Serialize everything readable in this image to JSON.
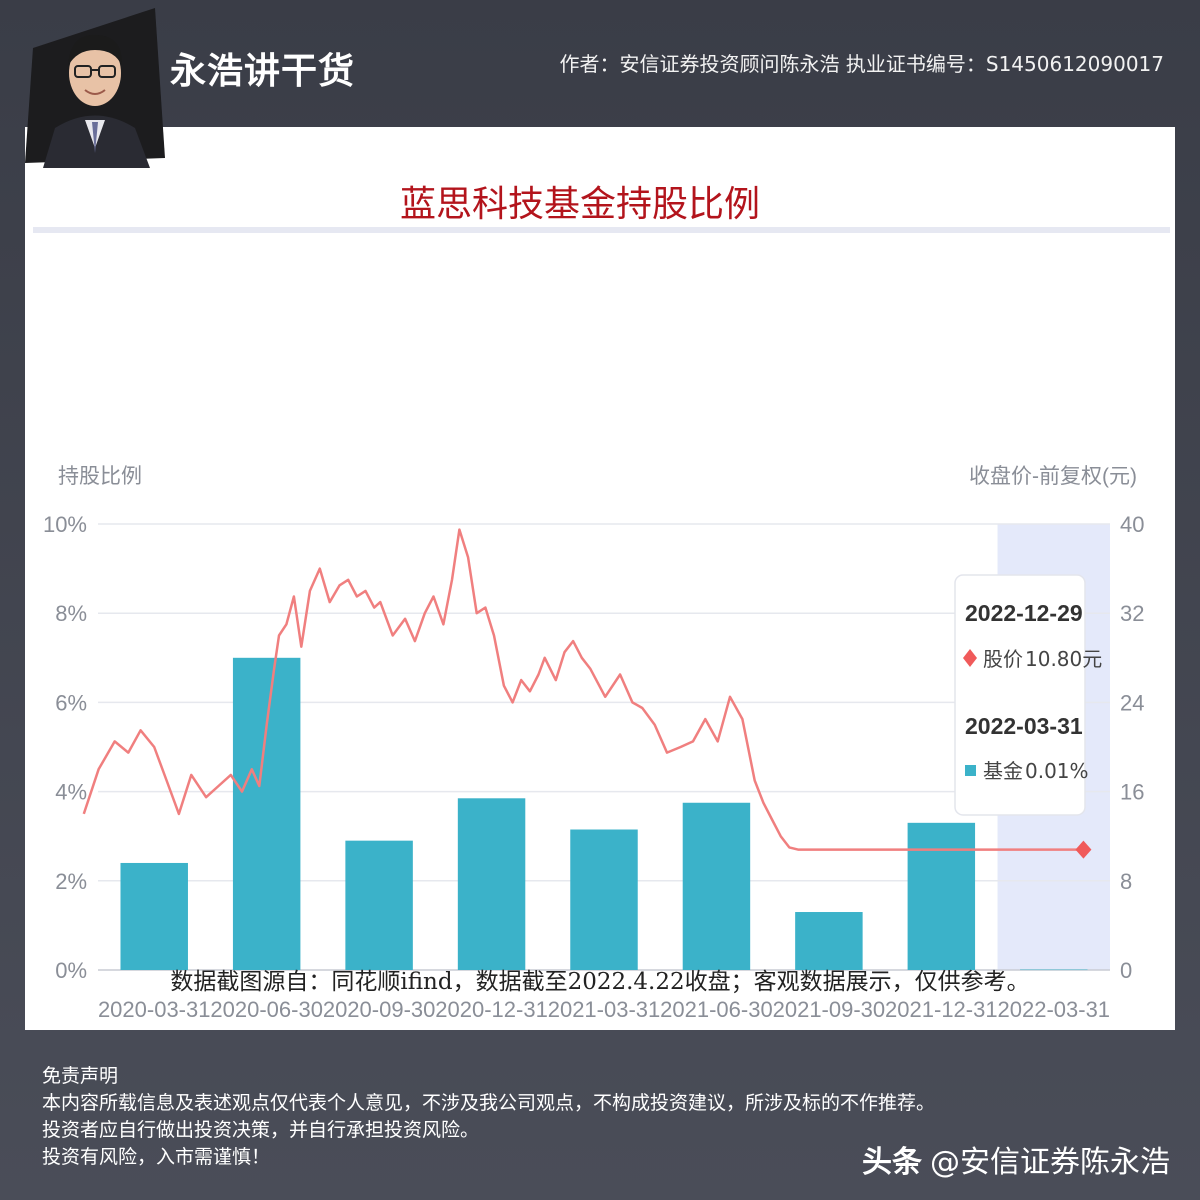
{
  "header": {
    "brand": "永浩讲干货",
    "author": "作者：安信证券投资顾问陈永浩 执业证书编号：S1450612090017"
  },
  "colors": {
    "bar": "#3bb2c9",
    "price_line": "#f07f7f",
    "highlight_band": "#e4e9fa",
    "title": "#b3141c"
  },
  "chart_data": {
    "type": "bar",
    "title": "蓝思科技基金持股比例",
    "ylabel_left": "持股比例",
    "ylabel_right": "收盘价-前复权(元)",
    "categories": [
      "2020-03-31",
      "2020-06-30",
      "2020-09-30",
      "2020-12-31",
      "2021-03-31",
      "2021-06-30",
      "2021-09-30",
      "2021-12-31",
      "2022-03-31"
    ],
    "y_left_ticks": [
      "0%",
      "2%",
      "4%",
      "6%",
      "8%",
      "10%"
    ],
    "y_right_ticks": [
      "0",
      "8",
      "16",
      "24",
      "32",
      "40"
    ],
    "ylim_left": [
      0,
      10
    ],
    "ylim_right": [
      0,
      40
    ],
    "grid": true,
    "series": [
      {
        "name": "基金",
        "axis": "left",
        "unit": "%",
        "values": [
          2.4,
          7.0,
          2.9,
          3.85,
          3.15,
          3.75,
          1.3,
          3.3,
          0.01
        ]
      },
      {
        "name": "股价",
        "axis": "right",
        "unit": "元",
        "type": "line",
        "x": [
          "2020-02-03",
          "2020-02-15",
          "2020-02-28",
          "2020-03-10",
          "2020-03-20",
          "2020-03-31",
          "2020-04-10",
          "2020-04-20",
          "2020-04-30",
          "2020-05-12",
          "2020-05-22",
          "2020-06-01",
          "2020-06-10",
          "2020-06-18",
          "2020-06-24",
          "2020-06-30",
          "2020-07-06",
          "2020-07-10",
          "2020-07-16",
          "2020-07-22",
          "2020-07-28",
          "2020-08-04",
          "2020-08-12",
          "2020-08-20",
          "2020-08-28",
          "2020-09-04",
          "2020-09-11",
          "2020-09-18",
          "2020-09-25",
          "2020-09-30",
          "2020-10-10",
          "2020-10-20",
          "2020-10-28",
          "2020-11-05",
          "2020-11-12",
          "2020-11-20",
          "2020-11-27",
          "2020-12-03",
          "2020-12-10",
          "2020-12-17",
          "2020-12-24",
          "2020-12-31",
          "2021-01-08",
          "2021-01-15",
          "2021-01-22",
          "2021-01-29",
          "2021-02-05",
          "2021-02-10",
          "2021-02-19",
          "2021-02-26",
          "2021-03-05",
          "2021-03-12",
          "2021-03-19",
          "2021-03-31",
          "2021-04-12",
          "2021-04-22",
          "2021-04-30",
          "2021-05-10",
          "2021-05-20",
          "2021-05-31",
          "2021-06-10",
          "2021-06-20",
          "2021-06-30",
          "2021-07-10",
          "2021-07-20",
          "2021-07-30",
          "2021-08-06",
          "2021-08-13",
          "2021-08-20",
          "2021-08-27",
          "2021-09-03",
          "2021-09-10",
          "2021-09-20",
          "2021-09-30",
          "2021-10-15",
          "2021-10-29",
          "2021-11-15",
          "2021-12-01",
          "2021-12-15",
          "2021-12-31",
          "2022-01-20",
          "2022-02-15",
          "2022-03-01",
          "2022-03-15",
          "2022-03-31",
          "2022-04-22"
        ],
        "values": [
          14.0,
          18.0,
          20.5,
          19.5,
          21.5,
          20.0,
          17.0,
          14.0,
          17.5,
          15.5,
          16.5,
          17.5,
          16.0,
          18.0,
          16.5,
          22.0,
          27.0,
          30.0,
          31.0,
          33.5,
          29.0,
          34.0,
          36.0,
          33.0,
          34.5,
          35.0,
          33.5,
          34.0,
          32.5,
          33.0,
          30.0,
          31.5,
          29.5,
          32.0,
          33.5,
          31.0,
          35.0,
          39.5,
          37.0,
          32.0,
          32.5,
          30.0,
          25.5,
          24.0,
          26.0,
          25.0,
          26.5,
          28.0,
          26.0,
          28.5,
          29.5,
          28.0,
          27.0,
          24.5,
          26.5,
          24.0,
          23.5,
          22.0,
          19.5,
          20.0,
          20.5,
          22.5,
          20.5,
          24.5,
          22.5,
          17.0,
          15.0,
          13.5,
          12.0,
          11.0,
          10.8,
          10.8,
          10.8,
          10.8,
          10.8,
          10.8,
          10.8,
          10.8,
          10.8,
          10.8,
          10.8,
          10.8,
          10.8,
          10.8,
          10.8,
          10.8
        ]
      }
    ],
    "highlight_category": "2022-03-31",
    "tooltip": {
      "date1": "2022-12-29",
      "price_label": "股价",
      "price_value": "10.80元",
      "date2": "2022-03-31",
      "fund_label": "基金",
      "fund_value": "0.01%"
    }
  },
  "footnote": "数据截图源自：同花顺ifind，数据截至2022.4.22收盘；客观数据展示，仅供参考。",
  "disclaimer": {
    "title": "免责声明",
    "lines": [
      "本内容所载信息及表述观点仅代表个人意见，不涉及我公司观点，不构成投资建议，所涉及标的不作推荐。",
      "投资者应自行做出投资决策，并自行承担投资风险。",
      "投资有风险，入市需谨慎！"
    ]
  },
  "watermark": {
    "prefix": "头条",
    "handle": "@安信证券陈永浩"
  }
}
